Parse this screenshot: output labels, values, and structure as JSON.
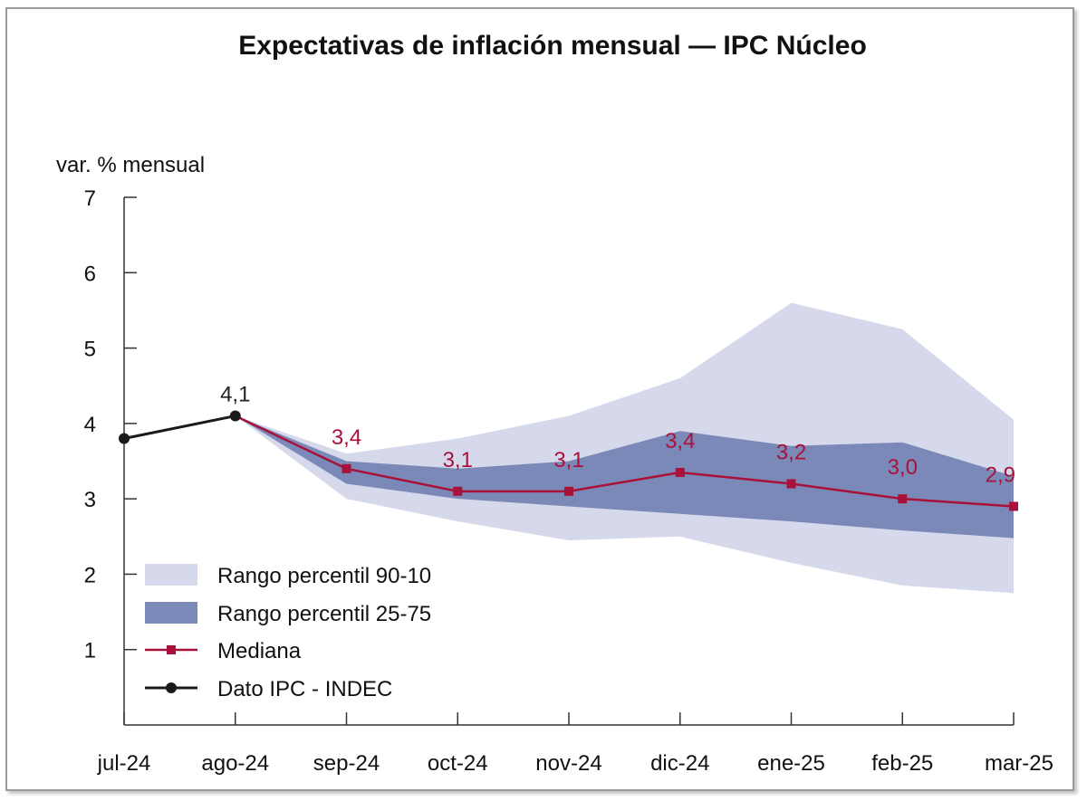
{
  "colors": {
    "band_90_10": "#d5d9eb",
    "band_25_75": "#7b89b8",
    "median": "#a8123a",
    "ipc": "#1a1a1a",
    "axis": "#333333"
  },
  "chart_data": {
    "type": "line",
    "title": "Expectativas de inflación mensual — IPC Núcleo",
    "ylabel": "var. % mensual",
    "xlabel": "",
    "categories": [
      "jul-24",
      "ago-24",
      "sep-24",
      "oct-24",
      "nov-24",
      "dic-24",
      "ene-25",
      "feb-25",
      "mar-25"
    ],
    "ylim": [
      0,
      7
    ],
    "yticks": [
      1,
      2,
      3,
      4,
      5,
      6,
      7
    ],
    "grid": false,
    "legend_position": "bottom-left",
    "series": [
      {
        "name": "Dato IPC - INDEC",
        "kind": "line",
        "values": [
          3.8,
          4.1,
          null,
          null,
          null,
          null,
          null,
          null,
          null
        ],
        "labels": [
          null,
          "4,1",
          null,
          null,
          null,
          null,
          null,
          null,
          null
        ]
      },
      {
        "name": "Mediana",
        "kind": "line",
        "values": [
          null,
          4.1,
          3.4,
          3.1,
          3.1,
          3.35,
          3.2,
          3.0,
          2.9
        ],
        "labels": [
          null,
          null,
          "3,4",
          "3,1",
          "3,1",
          "3,4",
          "3,2",
          "3,0",
          "2,9"
        ]
      },
      {
        "name": "Rango percentil 90-10",
        "kind": "band",
        "lower": [
          null,
          4.1,
          3.0,
          2.7,
          2.45,
          2.5,
          2.15,
          1.85,
          1.75
        ],
        "upper": [
          null,
          4.1,
          3.6,
          3.8,
          4.1,
          4.6,
          5.6,
          5.25,
          4.05
        ]
      },
      {
        "name": "Rango percentil 25-75",
        "kind": "band",
        "lower": [
          null,
          4.1,
          3.2,
          3.0,
          2.9,
          2.8,
          2.7,
          2.58,
          2.48
        ],
        "upper": [
          null,
          4.1,
          3.5,
          3.4,
          3.5,
          3.9,
          3.7,
          3.75,
          3.3
        ]
      }
    ],
    "legend": [
      "Rango percentil 90-10",
      "Rango percentil 25-75",
      "Mediana",
      "Dato IPC - INDEC"
    ]
  }
}
